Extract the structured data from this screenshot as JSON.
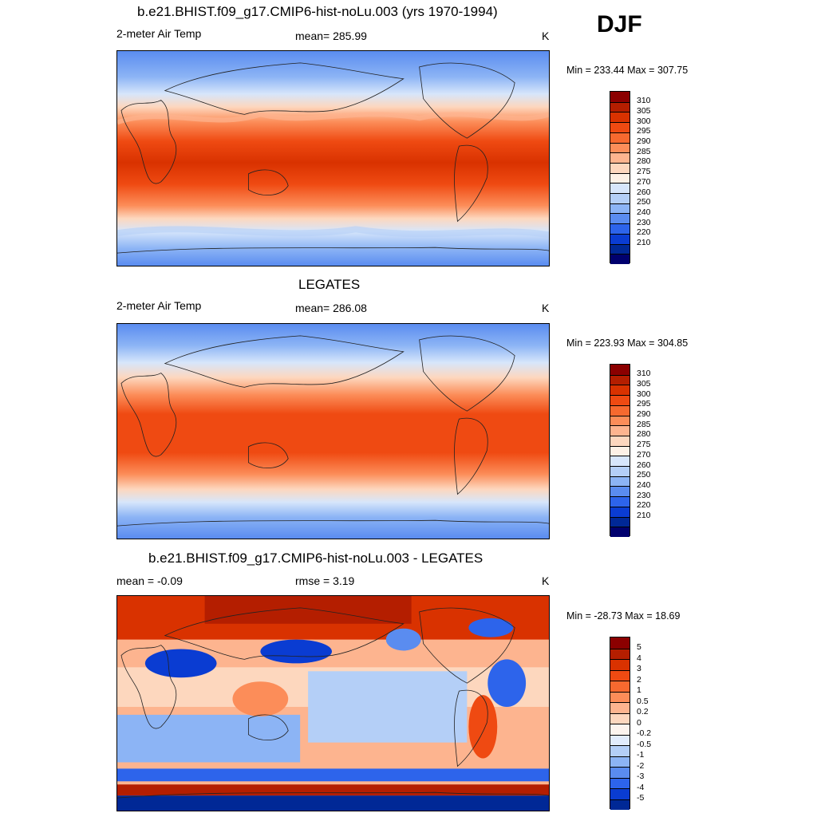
{
  "season": "DJF",
  "panels": [
    {
      "title": "b.e21.BHIST.f09_g17.CMIP6-hist-noLu.003 (yrs 1970-1994)",
      "left_label": "2-meter Air Temp",
      "center_label": "mean= 285.99",
      "right_label": "K",
      "minmax": "Min = 233.44 Max = 307.75"
    },
    {
      "title": "LEGATES",
      "left_label": "2-meter Air Temp",
      "center_label": "mean= 286.08",
      "right_label": "K",
      "minmax": "Min = 223.93 Max = 304.85"
    },
    {
      "title": "b.e21.BHIST.f09_g17.CMIP6-hist-noLu.003 - LEGATES",
      "left_label": "mean =  -0.09",
      "center_label": "rmse =   3.19",
      "right_label": "K",
      "minmax": "Min = -28.73 Max =  18.69"
    }
  ],
  "temp_colorbar": {
    "labels": [
      "310",
      "305",
      "300",
      "295",
      "290",
      "285",
      "280",
      "275",
      "270",
      "260",
      "250",
      "240",
      "230",
      "220",
      "210"
    ],
    "colors": [
      "#8b0000",
      "#b41e00",
      "#d93200",
      "#ef4a12",
      "#f7692f",
      "#fc8d59",
      "#fdb48f",
      "#fdd7be",
      "#fdf1e6",
      "#d7e6fb",
      "#b4cff7",
      "#8cb4f5",
      "#5a8cf0",
      "#2d64eb",
      "#0a3cd2",
      "#002896",
      "#00006e"
    ]
  },
  "diff_colorbar": {
    "labels": [
      "5",
      "4",
      "3",
      "2",
      "1",
      "0.5",
      "0.2",
      "0",
      "-0.2",
      "-0.5",
      "-1",
      "-2",
      "-3",
      "-4",
      "-5"
    ],
    "colors": [
      "#8b0000",
      "#b41e00",
      "#d93200",
      "#ef4a12",
      "#f7692f",
      "#fc8d59",
      "#fdb48f",
      "#fdd7be",
      "#fdf4ee",
      "#e2ecfc",
      "#b4cff7",
      "#8cb4f5",
      "#5a8cf0",
      "#2d64eb",
      "#0a3cd2",
      "#002896"
    ]
  }
}
